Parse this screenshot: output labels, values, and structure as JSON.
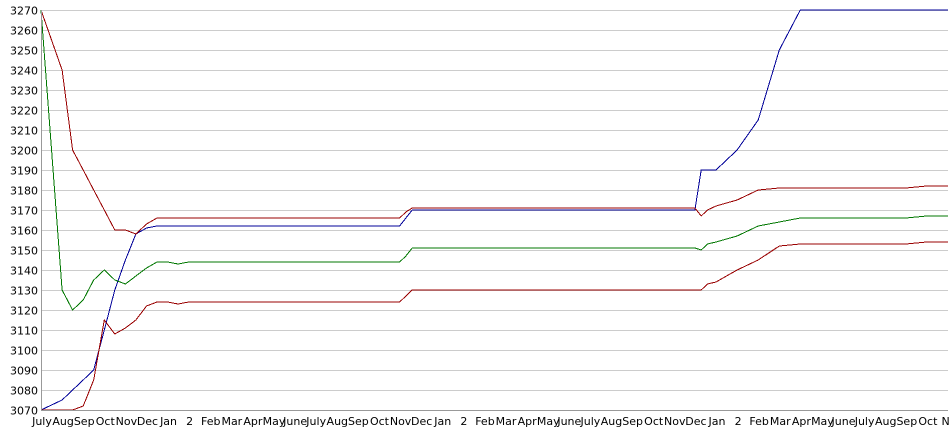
{
  "chart_data": {
    "type": "line",
    "title": "",
    "xlabel": "",
    "ylabel": "",
    "ylim": [
      3070,
      3270
    ],
    "yticks": [
      3070,
      3080,
      3090,
      3100,
      3110,
      3120,
      3130,
      3140,
      3150,
      3160,
      3170,
      3180,
      3190,
      3200,
      3210,
      3220,
      3230,
      3240,
      3250,
      3260,
      3270
    ],
    "x_tick_labels": [
      "July",
      "Aug",
      "Sep",
      "Oct",
      "Nov",
      "Dec",
      "Jan",
      "2",
      "Feb",
      "Mar",
      "Apr",
      "May",
      "June",
      "July",
      "Aug",
      "Sep",
      "Oct",
      "Nov",
      "Dec",
      "Jan",
      "2",
      "Feb",
      "Mar",
      "Apr",
      "May",
      "June",
      "July",
      "Aug",
      "Sep",
      "Oct",
      "Nov",
      "Dec",
      "Jan",
      "2",
      "Feb",
      "Mar",
      "Apr",
      "May",
      "June",
      "July",
      "Aug",
      "Sep",
      "Oct",
      "No"
    ],
    "grid": true,
    "legend": false,
    "x": [
      0,
      1,
      1.5,
      2,
      2.5,
      3,
      3.5,
      4,
      4.5,
      5,
      5.5,
      6,
      6.5,
      7,
      8,
      9,
      10,
      11,
      12,
      13,
      14,
      15,
      16,
      17,
      17.3,
      17.6,
      18,
      19,
      20,
      21,
      22,
      23,
      24,
      25,
      26,
      27,
      28,
      29,
      30,
      31,
      31.3,
      31.6,
      32,
      33,
      34,
      35,
      36,
      37,
      38,
      39,
      40,
      41,
      42,
      43
    ],
    "series": [
      {
        "color": "#000099",
        "values": [
          3070,
          3075,
          3080,
          3085,
          3090,
          3110,
          3130,
          3145,
          3158,
          3161,
          3162,
          3162,
          3162,
          3162,
          3162,
          3162,
          3162,
          3162,
          3162,
          3162,
          3162,
          3162,
          3162,
          3162,
          3166,
          3170,
          3170,
          3170,
          3170,
          3170,
          3170,
          3170,
          3170,
          3170,
          3170,
          3170,
          3170,
          3170,
          3170,
          3170,
          3190,
          3190,
          3190,
          3200,
          3215,
          3250,
          3270,
          3270,
          3270,
          3270,
          3270,
          3270,
          3270,
          3270
        ]
      },
      {
        "color": "#990000",
        "values": [
          3270,
          3240,
          3200,
          3190,
          3180,
          3170,
          3160,
          3160,
          3158,
          3163,
          3166,
          3166,
          3166,
          3166,
          3166,
          3166,
          3166,
          3166,
          3166,
          3166,
          3166,
          3166,
          3166,
          3166,
          3169,
          3171,
          3171,
          3171,
          3171,
          3171,
          3171,
          3171,
          3171,
          3171,
          3171,
          3171,
          3171,
          3171,
          3171,
          3171,
          3167,
          3170,
          3172,
          3175,
          3180,
          3181,
          3181,
          3181,
          3181,
          3181,
          3181,
          3181,
          3182,
          3182
        ]
      },
      {
        "color": "#007700",
        "values": [
          3270,
          3130,
          3120,
          3125,
          3135,
          3140,
          3135,
          3133,
          3137,
          3141,
          3144,
          3144,
          3143,
          3144,
          3144,
          3144,
          3144,
          3144,
          3144,
          3144,
          3144,
          3144,
          3144,
          3144,
          3147,
          3151,
          3151,
          3151,
          3151,
          3151,
          3151,
          3151,
          3151,
          3151,
          3151,
          3151,
          3151,
          3151,
          3151,
          3151,
          3150,
          3153,
          3154,
          3157,
          3162,
          3164,
          3166,
          3166,
          3166,
          3166,
          3166,
          3166,
          3167,
          3167
        ]
      },
      {
        "color": "#990000",
        "values": [
          3070,
          3070,
          3070,
          3072,
          3085,
          3115,
          3108,
          3111,
          3115,
          3122,
          3124,
          3124,
          3123,
          3124,
          3124,
          3124,
          3124,
          3124,
          3124,
          3124,
          3124,
          3124,
          3124,
          3124,
          3127,
          3130,
          3130,
          3130,
          3130,
          3130,
          3130,
          3130,
          3130,
          3130,
          3130,
          3130,
          3130,
          3130,
          3130,
          3130,
          3130,
          3133,
          3134,
          3140,
          3145,
          3152,
          3153,
          3153,
          3153,
          3153,
          3153,
          3153,
          3154,
          3154
        ]
      }
    ]
  }
}
